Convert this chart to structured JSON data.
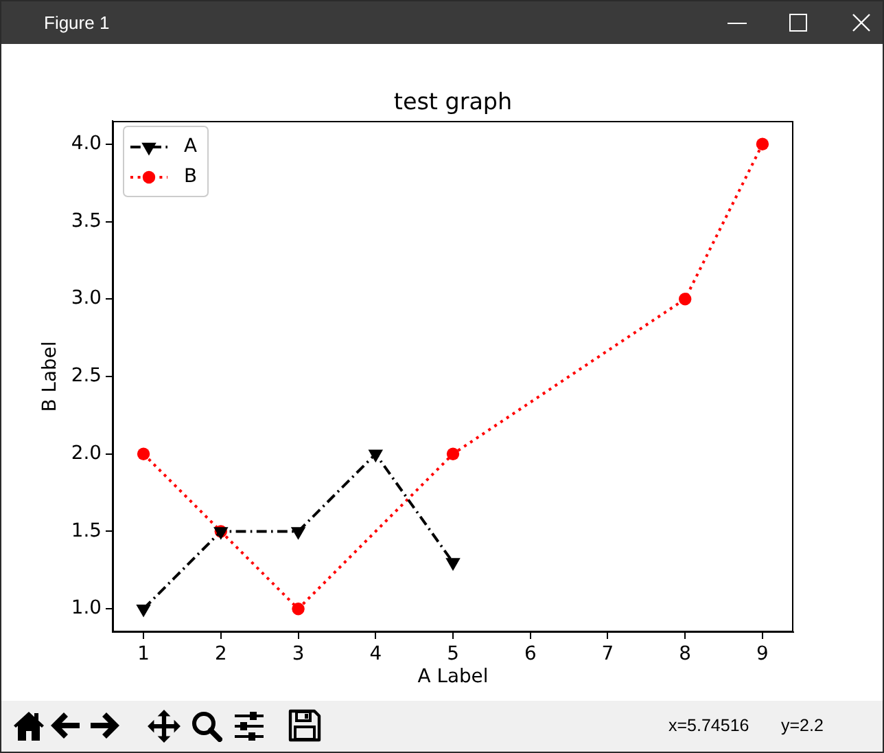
{
  "chart_data": {
    "type": "line",
    "title": "test graph",
    "xlabel": "A Label",
    "ylabel": "B Label",
    "series": [
      {
        "name": "A",
        "color": "#000000",
        "x": [
          1,
          2,
          3,
          4,
          5
        ],
        "values": [
          1.0,
          1.5,
          1.5,
          2.0,
          1.3
        ],
        "marker": "triangle",
        "line_style": "dashed"
      },
      {
        "name": "B",
        "color": "#ff0000",
        "x": [
          1,
          2,
          3,
          5,
          8,
          9
        ],
        "values": [
          2.0,
          1.5,
          1.0,
          2.0,
          3.0,
          4.0
        ],
        "marker": "circle",
        "line_style": "dotted"
      }
    ],
    "xlim": [
      0.6,
      9.4
    ],
    "xticks": [
      1,
      2,
      3,
      4,
      5,
      6,
      7,
      8,
      9
    ],
    "ylim": [
      0.85,
      4.15
    ],
    "yticks": [
      {
        "value": 1,
        "label": "1.0"
      },
      1.5,
      {
        "value": 2,
        "label": "2.0"
      },
      2.5,
      {
        "value": 3,
        "label": "3.0"
      },
      3.5,
      {
        "value": 4,
        "label": "4.0"
      }
    ],
    "legend": "top left",
    "annotations": [
      "Figure 1",
      "x=5.74516",
      "y=2.2"
    ]
  }
}
